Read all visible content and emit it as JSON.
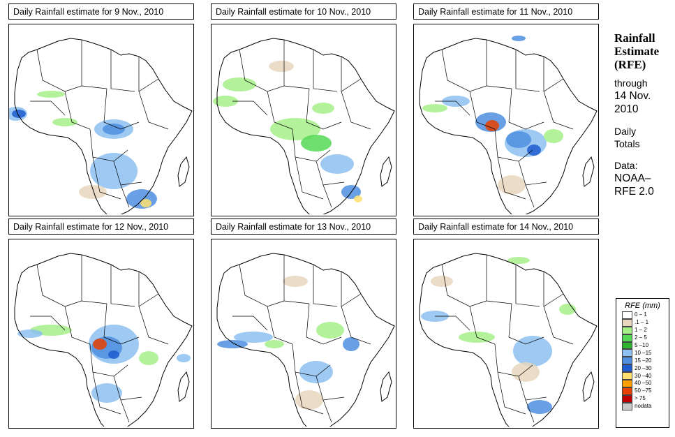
{
  "panels": [
    {
      "title": "Daily Rainfall estimate for  9 Nov., 2010"
    },
    {
      "title": "Daily Rainfall estimate for  10 Nov., 2010"
    },
    {
      "title": "Daily Rainfall estimate for  11 Nov., 2010"
    },
    {
      "title": "Daily Rainfall estimate for  12 Nov., 2010"
    },
    {
      "title": "Daily Rainfall estimate for  13 Nov., 2010"
    },
    {
      "title": "Daily Rainfall estimate for  14 Nov., 2010"
    }
  ],
  "sidebar": {
    "heading_line1": "Rainfall",
    "heading_line2": "Estimate",
    "heading_line3": "(RFE)",
    "through_label": "through",
    "end_date_line1": "14 Nov.",
    "end_date_line2": "2010",
    "totals_line1": "Daily",
    "totals_line2": "Totals",
    "data_label": "Data:",
    "source_line1": "NOAA–",
    "source_line2": "RFE 2.0"
  },
  "legend": {
    "title": "RFE (mm)",
    "items": [
      {
        "label": "0 – 1",
        "color": "#ffffff"
      },
      {
        "label": ".1 – 1",
        "color": "#e8d6be"
      },
      {
        "label": "1 – 2",
        "color": "#a6f08a"
      },
      {
        "label": "2 – 5",
        "color": "#55d855"
      },
      {
        "label": "5 –10",
        "color": "#2fb42f"
      },
      {
        "label": "10 –15",
        "color": "#8cc0f0"
      },
      {
        "label": "15 –20",
        "color": "#4f8fe0"
      },
      {
        "label": "20 –30",
        "color": "#1f5cd0"
      },
      {
        "label": "30 –40",
        "color": "#ffe070"
      },
      {
        "label": "40 –50",
        "color": "#ffa000"
      },
      {
        "label": "50 –75",
        "color": "#e84000"
      },
      {
        "label": "> 75",
        "color": "#c00000"
      },
      {
        "label": "nodata",
        "color": "#c8c8c8"
      }
    ]
  },
  "colors": {
    "border": "#000000",
    "background": "#ffffff"
  }
}
